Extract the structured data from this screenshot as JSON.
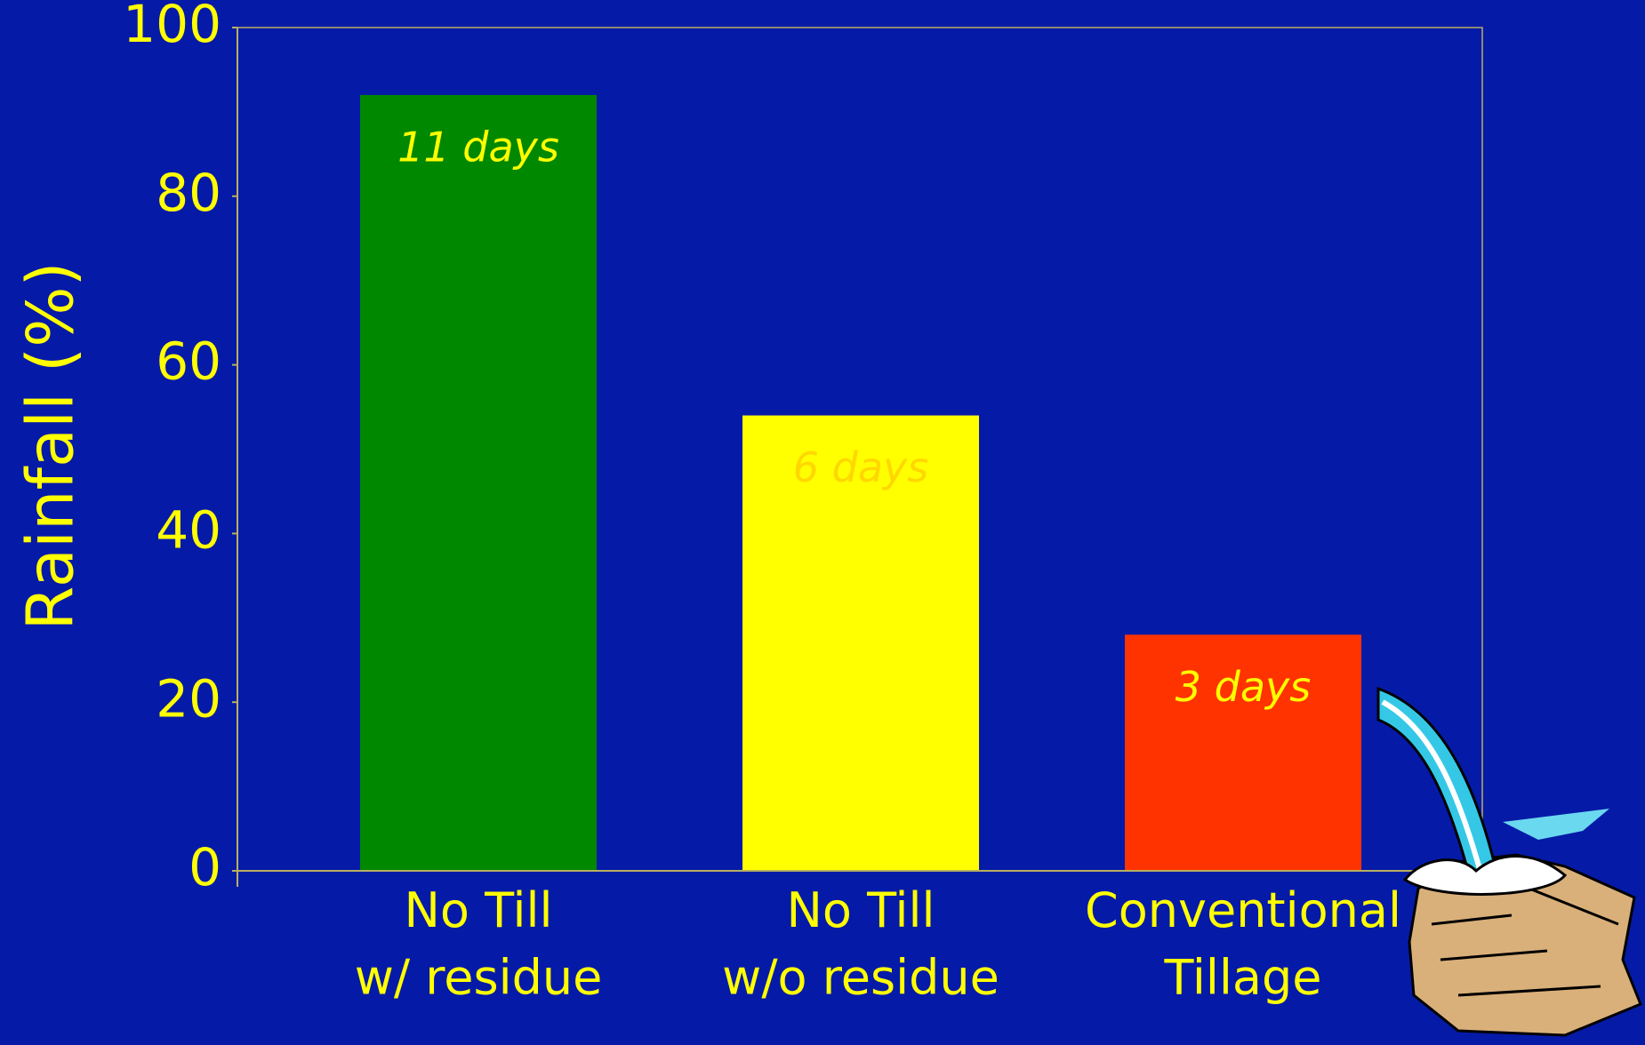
{
  "chart_data": {
    "type": "bar",
    "y_label": "Rainfall (%)",
    "categories": [
      "No Till\nw/ residue",
      "No Till\nw/o residue",
      "Conventional\nTillage"
    ],
    "values": [
      92,
      54,
      28
    ],
    "colors": [
      "#008800",
      "#ffff00",
      "#ff3300"
    ],
    "annotations": [
      "11 days",
      "6 days",
      "3 days"
    ],
    "annotation_colors": [
      "#ffff00",
      "#ffd700",
      "#ffff00"
    ],
    "ylim": [
      0,
      100
    ],
    "yticks": [
      0,
      20,
      40,
      60,
      80,
      100
    ],
    "grid": false
  }
}
